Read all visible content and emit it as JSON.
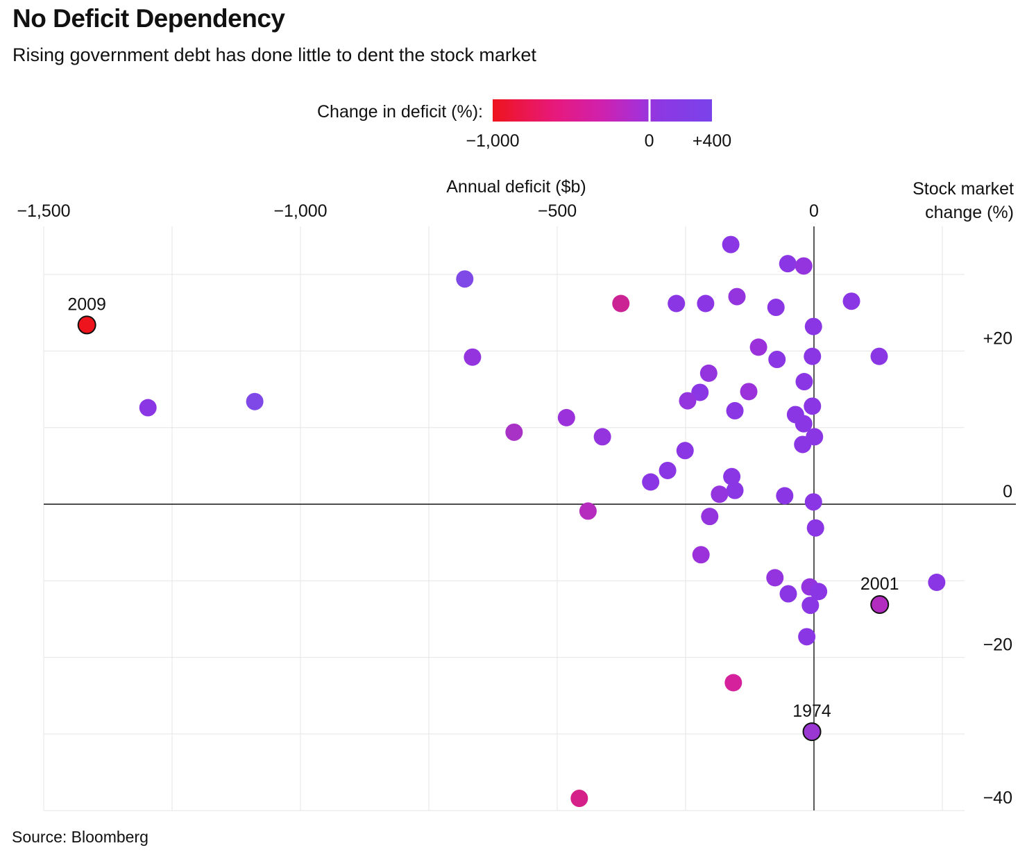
{
  "header": {
    "title": "No Deficit Dependency",
    "subtitle": "Rising government debt has done little to dent the stock market"
  },
  "legend": {
    "label": "Change in deficit (%):",
    "min_label": "−1,000",
    "zero_label": "0",
    "max_label": "+400",
    "zero_position_pct": 71.4,
    "gradient_stops": [
      {
        "c": "#ee141d",
        "p": 0
      },
      {
        "c": "#e7197b",
        "p": 28
      },
      {
        "c": "#cf21ae",
        "p": 50
      },
      {
        "c": "#a82fd4",
        "p": 66
      },
      {
        "c": "#8d38e2",
        "p": 76
      },
      {
        "c": "#7a42ea",
        "p": 100
      }
    ]
  },
  "axes": {
    "x_title": "Annual deficit ($b)",
    "y_title_line1": "Stock market",
    "y_title_line2": "change (%)"
  },
  "footer": {
    "source": "Source: Bloomberg"
  },
  "chart_data": {
    "type": "scatter",
    "title": "No Deficit Dependency",
    "subtitle": "Rising government debt has done little to dent the stock market",
    "xlabel": "Annual deficit ($b)",
    "ylabel": "Stock market change (%)",
    "color_encoding": "Change in deficit (%)",
    "color_scale_range": [
      -1000,
      400
    ],
    "xlim": [
      -1500,
      295
    ],
    "ylim": [
      -41,
      36
    ],
    "grid": true,
    "x_ticks": [
      {
        "v": -1500,
        "label": "−1,500"
      },
      {
        "v": -1000,
        "label": "−1,000"
      },
      {
        "v": -500,
        "label": "−500"
      },
      {
        "v": 0,
        "label": "0"
      }
    ],
    "y_ticks": [
      {
        "v": 20,
        "label": "+20"
      },
      {
        "v": 0,
        "label": "0"
      },
      {
        "v": -20,
        "label": "−20"
      },
      {
        "v": -40,
        "label": "−40"
      }
    ],
    "x_gridlines": [
      -1500,
      -1250,
      -1000,
      -750,
      -500,
      -250,
      250
    ],
    "y_gridlines": [
      30,
      20,
      10,
      -10,
      -20,
      -30,
      -40
    ],
    "points": [
      {
        "x": -162,
        "y": 33.9,
        "color": "#8a36e4"
      },
      {
        "x": -51,
        "y": 31.4,
        "color": "#8a36e4"
      },
      {
        "x": -20,
        "y": 31.1,
        "color": "#9334de"
      },
      {
        "x": -680,
        "y": 29.4,
        "color": "#7e49e6"
      },
      {
        "x": -376,
        "y": 26.2,
        "color": "#cb2394"
      },
      {
        "x": -268,
        "y": 26.2,
        "color": "#8a36e4"
      },
      {
        "x": -211,
        "y": 26.2,
        "color": "#8a36e4"
      },
      {
        "x": -150,
        "y": 27.1,
        "color": "#9334de"
      },
      {
        "x": -74,
        "y": 25.7,
        "color": "#8a36e4"
      },
      {
        "x": 73,
        "y": 26.5,
        "color": "#8a36e4"
      },
      {
        "x": -1416,
        "y": 23.4,
        "color": "#ee141d",
        "label": "2009",
        "outlined": true
      },
      {
        "x": -1,
        "y": 23.2,
        "color": "#8a36e4"
      },
      {
        "x": -108,
        "y": 20.5,
        "color": "#9a31da"
      },
      {
        "x": -3,
        "y": 19.3,
        "color": "#8a36e4"
      },
      {
        "x": -665,
        "y": 19.2,
        "color": "#9334de"
      },
      {
        "x": -72,
        "y": 18.9,
        "color": "#8a36e4"
      },
      {
        "x": 127,
        "y": 19.3,
        "color": "#8a36e4"
      },
      {
        "x": -19,
        "y": 16.0,
        "color": "#8a36e4"
      },
      {
        "x": -205,
        "y": 17.1,
        "color": "#9334de"
      },
      {
        "x": -1297,
        "y": 12.6,
        "color": "#8a36e4"
      },
      {
        "x": -1089,
        "y": 13.4,
        "color": "#7e49e6"
      },
      {
        "x": -222,
        "y": 14.6,
        "color": "#8a36e4"
      },
      {
        "x": -246,
        "y": 13.5,
        "color": "#9334de"
      },
      {
        "x": -127,
        "y": 14.7,
        "color": "#9a31da"
      },
      {
        "x": -154,
        "y": 12.2,
        "color": "#8a36e4"
      },
      {
        "x": -36,
        "y": 11.7,
        "color": "#8a36e4"
      },
      {
        "x": -3,
        "y": 12.8,
        "color": "#8a36e4"
      },
      {
        "x": -482,
        "y": 11.3,
        "color": "#9a31da"
      },
      {
        "x": -20,
        "y": 10.5,
        "color": "#8a36e4"
      },
      {
        "x": -584,
        "y": 9.4,
        "color": "#a832c6"
      },
      {
        "x": -412,
        "y": 8.8,
        "color": "#9334de"
      },
      {
        "x": -22,
        "y": 7.8,
        "color": "#8a36e4"
      },
      {
        "x": 1,
        "y": 8.8,
        "color": "#8a36e4"
      },
      {
        "x": -251,
        "y": 7.0,
        "color": "#8a36e4"
      },
      {
        "x": -285,
        "y": 4.4,
        "color": "#8a36e4"
      },
      {
        "x": -318,
        "y": 2.9,
        "color": "#8a36e4"
      },
      {
        "x": -160,
        "y": 3.6,
        "color": "#8a36e4"
      },
      {
        "x": -154,
        "y": 1.8,
        "color": "#8a36e4"
      },
      {
        "x": -184,
        "y": 1.3,
        "color": "#9334de"
      },
      {
        "x": -57,
        "y": 1.1,
        "color": "#8a36e4"
      },
      {
        "x": -1,
        "y": 0.3,
        "color": "#8a36e4"
      },
      {
        "x": -440,
        "y": -0.9,
        "color": "#b42bbd"
      },
      {
        "x": -203,
        "y": -1.6,
        "color": "#9334de"
      },
      {
        "x": 3,
        "y": -3.1,
        "color": "#8a36e4"
      },
      {
        "x": -220,
        "y": -6.6,
        "color": "#9a31da"
      },
      {
        "x": -76,
        "y": -9.6,
        "color": "#9334de"
      },
      {
        "x": 239,
        "y": -10.2,
        "color": "#8a36e4"
      },
      {
        "x": -50,
        "y": -11.7,
        "color": "#8a36e4"
      },
      {
        "x": -8,
        "y": -10.8,
        "color": "#9334de"
      },
      {
        "x": 9,
        "y": -11.4,
        "color": "#8a36e4"
      },
      {
        "x": -7,
        "y": -13.2,
        "color": "#8a36e4"
      },
      {
        "x": 128,
        "y": -13.1,
        "color": "#b32cc0",
        "label": "2001",
        "outlined": true
      },
      {
        "x": -14,
        "y": -17.3,
        "color": "#8a36e4"
      },
      {
        "x": -157,
        "y": -23.3,
        "color": "#d6219c"
      },
      {
        "x": -4,
        "y": -29.7,
        "color": "#9a36d2",
        "label": "1974",
        "outlined": true
      },
      {
        "x": -457,
        "y": -38.4,
        "color": "#d62089"
      }
    ]
  }
}
